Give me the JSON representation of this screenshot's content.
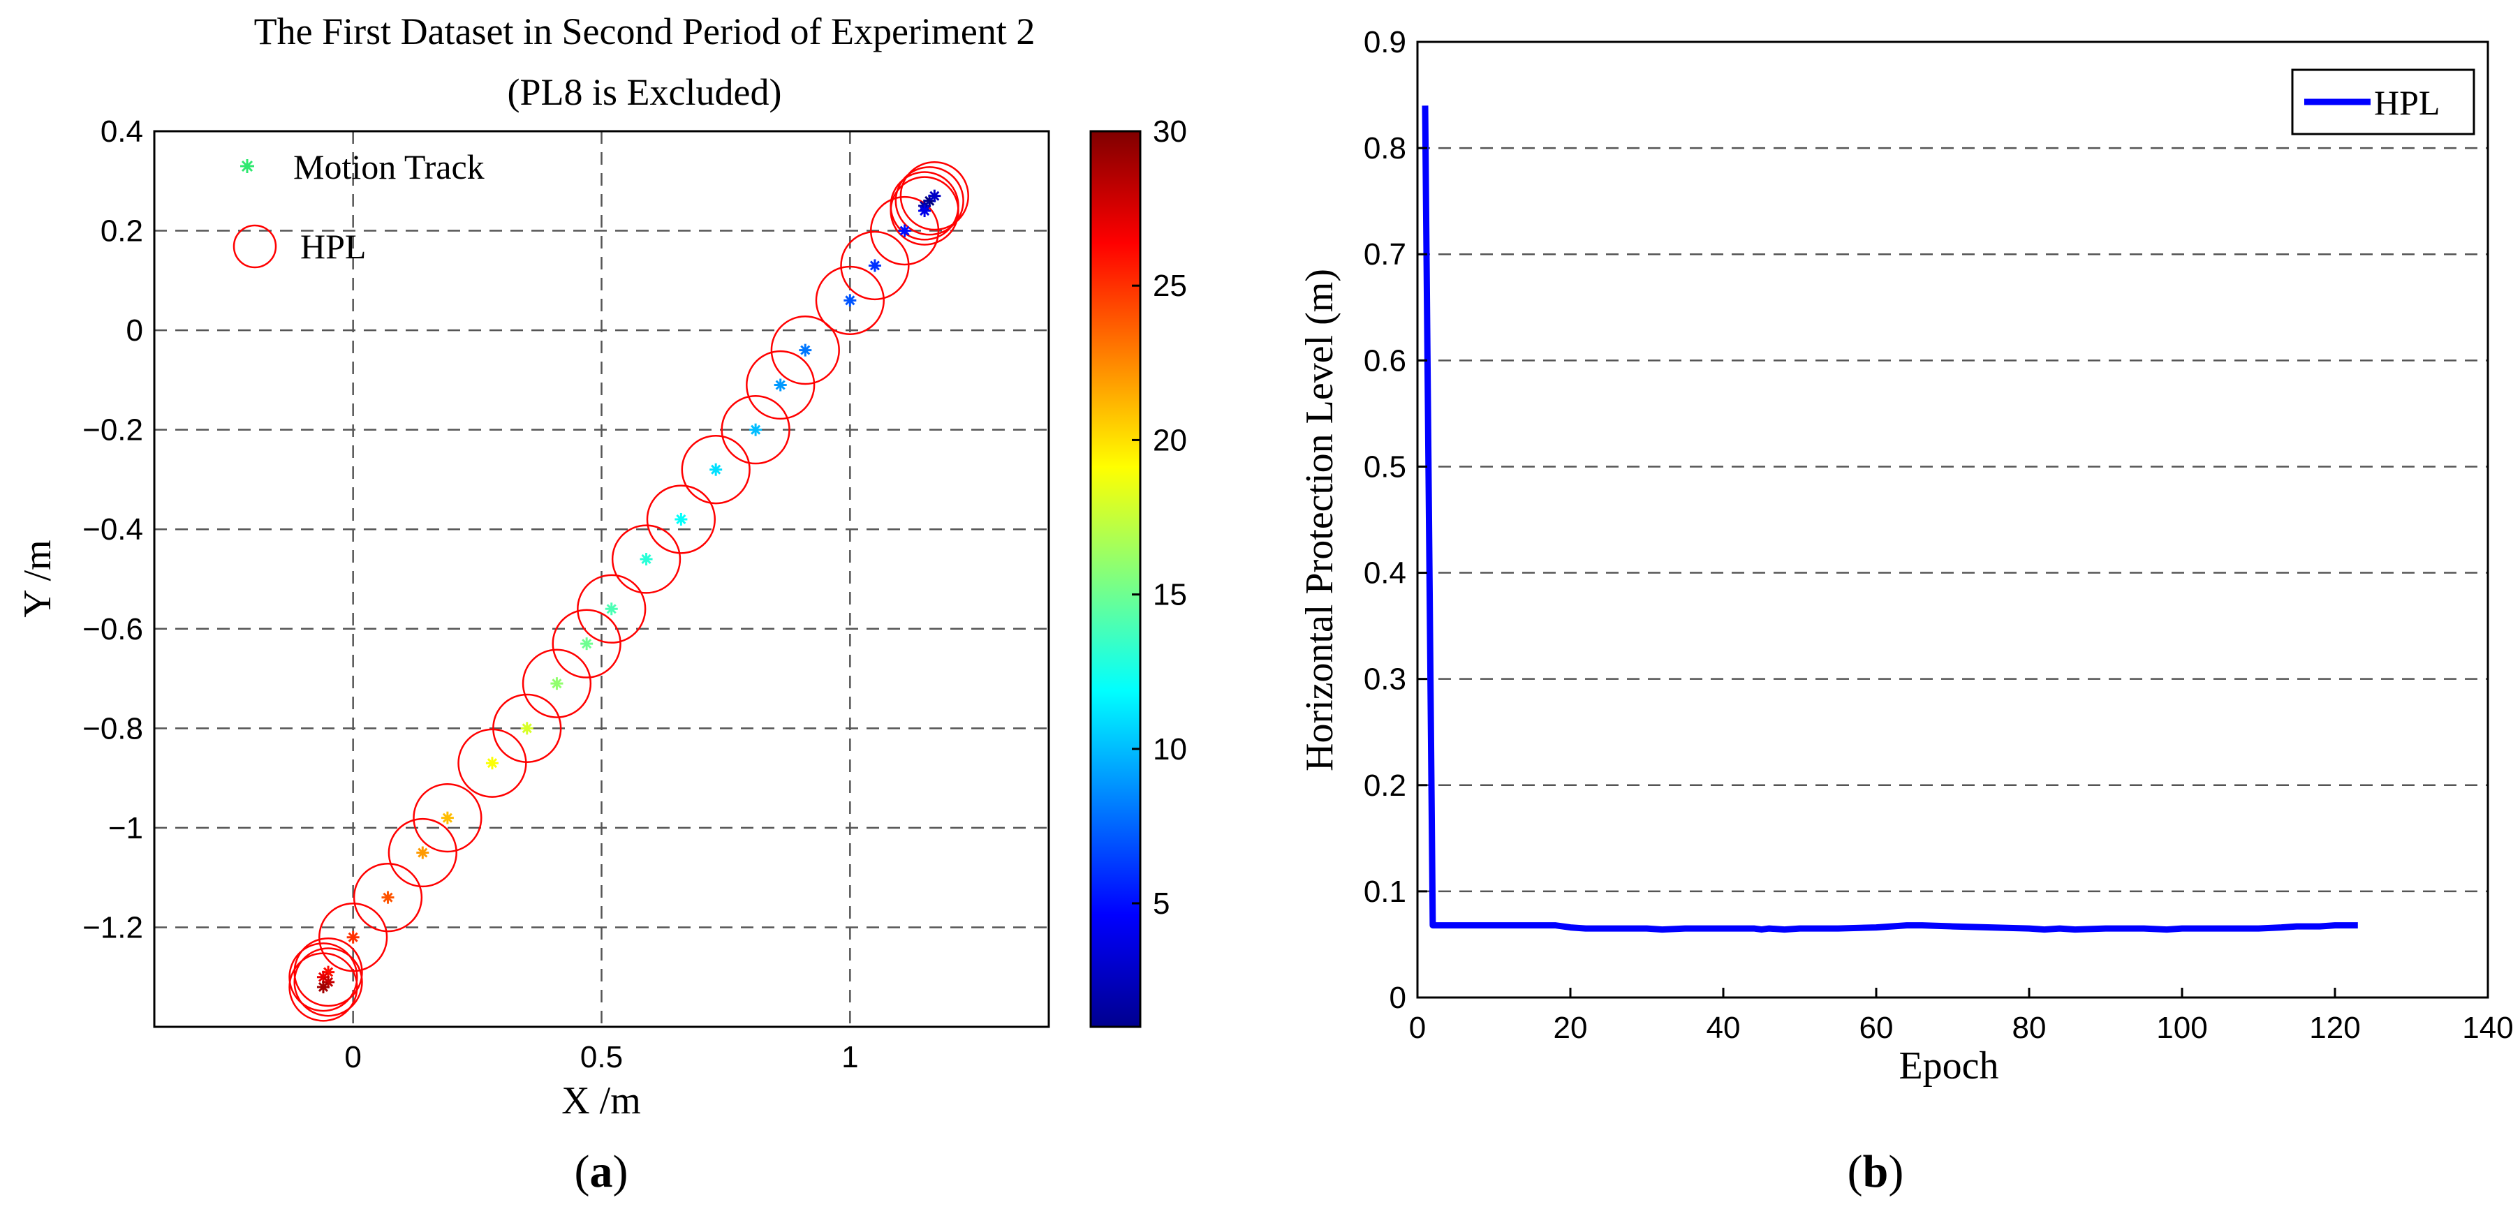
{
  "chart_data": [
    {
      "panel_label": "a",
      "type": "scatter",
      "title_line1": "The First Dataset in Second Period of Experiment 2",
      "title_line2": "(PL8 is Excluded)",
      "xlabel": "X /m",
      "ylabel": "Y /m",
      "xlim": [
        -0.4,
        1.4
      ],
      "ylim": [
        -1.4,
        0.4
      ],
      "xticks": [
        0,
        0.5,
        1
      ],
      "xtick_labels": [
        "0",
        "0.5",
        "1"
      ],
      "yticks": [
        0.4,
        0.2,
        0,
        -0.2,
        -0.4,
        -0.6,
        -0.8,
        -1,
        -1.2
      ],
      "ytick_labels": [
        "0.4",
        "0.2",
        "0",
        "−0.2",
        "−0.4",
        "−0.6",
        "−0.8",
        "−1",
        "−1.2"
      ],
      "grid": true,
      "legend": {
        "position": "top-left",
        "entries": [
          "Motion Track",
          "HPL"
        ]
      },
      "colorbar": {
        "range": [
          1,
          30
        ],
        "ticks": [
          5,
          10,
          15,
          20,
          25,
          30
        ],
        "tick_labels": [
          "5",
          "10",
          "15",
          "20",
          "25",
          "30"
        ],
        "colormap": "jet"
      },
      "hpl_radius": 0.068,
      "points": [
        {
          "x": 1.16,
          "y": 0.26,
          "c": 1
        },
        {
          "x": 1.15,
          "y": 0.25,
          "c": 2
        },
        {
          "x": 1.17,
          "y": 0.27,
          "c": 3
        },
        {
          "x": 1.15,
          "y": 0.24,
          "c": 4
        },
        {
          "x": 1.11,
          "y": 0.2,
          "c": 5
        },
        {
          "x": 1.05,
          "y": 0.13,
          "c": 6
        },
        {
          "x": 1.0,
          "y": 0.06,
          "c": 7
        },
        {
          "x": 0.91,
          "y": -0.04,
          "c": 8
        },
        {
          "x": 0.86,
          "y": -0.11,
          "c": 9
        },
        {
          "x": 0.81,
          "y": -0.2,
          "c": 10
        },
        {
          "x": 0.73,
          "y": -0.28,
          "c": 11
        },
        {
          "x": 0.66,
          "y": -0.38,
          "c": 12
        },
        {
          "x": 0.59,
          "y": -0.46,
          "c": 13
        },
        {
          "x": 0.52,
          "y": -0.56,
          "c": 14
        },
        {
          "x": 0.47,
          "y": -0.63,
          "c": 15
        },
        {
          "x": 0.41,
          "y": -0.71,
          "c": 16
        },
        {
          "x": 0.35,
          "y": -0.8,
          "c": 18
        },
        {
          "x": 0.28,
          "y": -0.87,
          "c": 19
        },
        {
          "x": 0.19,
          "y": -0.98,
          "c": 21
        },
        {
          "x": 0.14,
          "y": -1.05,
          "c": 22
        },
        {
          "x": 0.07,
          "y": -1.14,
          "c": 24
        },
        {
          "x": 0.0,
          "y": -1.22,
          "c": 25
        },
        {
          "x": -0.05,
          "y": -1.29,
          "c": 26
        },
        {
          "x": -0.06,
          "y": -1.3,
          "c": 27
        },
        {
          "x": -0.05,
          "y": -1.31,
          "c": 28
        },
        {
          "x": -0.06,
          "y": -1.32,
          "c": 29
        }
      ]
    },
    {
      "panel_label": "b",
      "type": "line",
      "title": "",
      "xlabel": "Epoch",
      "ylabel": "Horizontal Protection Level (m)",
      "xlim": [
        0,
        140
      ],
      "ylim": [
        0,
        0.9
      ],
      "xticks": [
        0,
        20,
        40,
        60,
        80,
        100,
        120,
        140
      ],
      "xtick_labels": [
        "0",
        "20",
        "40",
        "60",
        "80",
        "100",
        "120",
        "140"
      ],
      "yticks": [
        0,
        0.1,
        0.2,
        0.3,
        0.4,
        0.5,
        0.6,
        0.7,
        0.8,
        0.9
      ],
      "ytick_labels": [
        "0",
        "0.1",
        "0.2",
        "0.3",
        "0.4",
        "0.5",
        "0.6",
        "0.7",
        "0.8",
        "0.9"
      ],
      "grid": "horizontal dashed",
      "legend": {
        "position": "top-right",
        "entries": [
          "HPL"
        ]
      },
      "series": [
        {
          "name": "HPL",
          "color": "#0000ff",
          "x": [
            1,
            2,
            5,
            10,
            15,
            18,
            20,
            22,
            25,
            30,
            32,
            35,
            40,
            44,
            45,
            46,
            48,
            50,
            55,
            60,
            62,
            64,
            66,
            70,
            75,
            80,
            82,
            84,
            86,
            90,
            95,
            98,
            100,
            105,
            110,
            113,
            115,
            118,
            120,
            123
          ],
          "y": [
            0.84,
            0.068,
            0.068,
            0.068,
            0.068,
            0.068,
            0.066,
            0.065,
            0.065,
            0.065,
            0.064,
            0.065,
            0.065,
            0.065,
            0.064,
            0.065,
            0.064,
            0.065,
            0.065,
            0.066,
            0.067,
            0.068,
            0.068,
            0.067,
            0.066,
            0.065,
            0.064,
            0.065,
            0.064,
            0.065,
            0.065,
            0.064,
            0.065,
            0.065,
            0.065,
            0.066,
            0.067,
            0.067,
            0.068,
            0.068
          ]
        }
      ]
    }
  ]
}
